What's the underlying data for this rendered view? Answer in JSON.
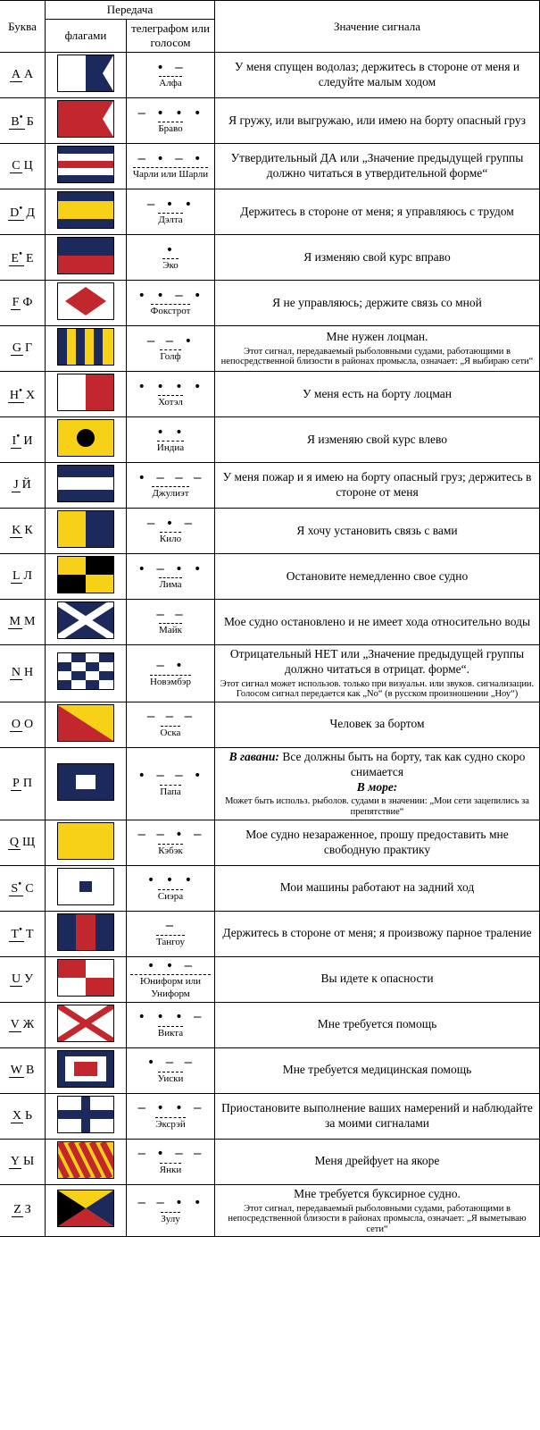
{
  "headers": {
    "letter": "Буква",
    "transmission": "Передача",
    "flags": "флагами",
    "telegraph": "телеграфом или голосом",
    "meaning": "Значение сигнала"
  },
  "colors": {
    "navy": "#1b2a5b",
    "red": "#c1272d",
    "yellow": "#f7d117",
    "white": "#ffffff",
    "black": "#000000"
  },
  "rows": [
    {
      "lat": "A",
      "cyr": "А",
      "star": "",
      "morse": "· —",
      "label": "Алфа",
      "meaning": "У меня спущен водолаз; держитесь в стороне от меня и следуйте малым ходом",
      "flag": "<svg viewBox='0 0 62 40'><rect width='31' height='40' fill='#ffffff'/><path d='M31 0 H62 L50 20 L62 40 H31 Z' fill='#1b2a5b'/></svg>"
    },
    {
      "lat": "B",
      "cyr": "Б",
      "star": "•",
      "morse": "— · · ·",
      "label": "Браво",
      "meaning": "Я гружу, или выгружаю, или имею на борту опасный груз",
      "flag": "<svg viewBox='0 0 62 40'><path d='M0 0 H62 L50 20 L62 40 H0 Z' fill='#c1272d'/></svg>"
    },
    {
      "lat": "C",
      "cyr": "Ц",
      "star": "",
      "morse": "— · — ·",
      "label": "Чарли или Шарли",
      "meaning": "Утвердительный ДА или „Значение предыдущей группы должно читаться в утвердительной форме“",
      "flag": "<svg viewBox='0 0 62 40'><rect width='62' height='40' fill='#1b2a5b'/><rect y='8' width='62' height='8' fill='#ffffff'/><rect y='16' width='62' height='8' fill='#c1272d'/><rect y='24' width='62' height='8' fill='#ffffff'/></svg>"
    },
    {
      "lat": "D",
      "cyr": "Д",
      "star": "•",
      "morse": "— · ·",
      "label": "Дэлта",
      "meaning": "Держитесь в стороне от меня; я управляюсь с трудом",
      "flag": "<svg viewBox='0 0 62 40'><rect width='62' height='40' fill='#f7d117'/><rect y='0' width='62' height='10' fill='#1b2a5b'/><rect y='30' width='62' height='10' fill='#1b2a5b'/></svg>"
    },
    {
      "lat": "E",
      "cyr": "Е",
      "star": "•",
      "morse": "·",
      "label": "Эко",
      "meaning": "Я изменяю свой курс вправо",
      "flag": "<svg viewBox='0 0 62 40'><rect width='62' height='20' fill='#1b2a5b'/><rect y='20' width='62' height='20' fill='#c1272d'/></svg>"
    },
    {
      "lat": "F",
      "cyr": "Ф",
      "star": "",
      "morse": "· · — ·",
      "label": "Фокстрот",
      "meaning": "Я не управляюсь; держите связь со мной",
      "flag": "<svg viewBox='0 0 62 40'><rect width='62' height='40' fill='#ffffff'/><path d='M31 4 L54 20 L31 36 L8 20 Z' fill='#c1272d'/></svg>"
    },
    {
      "lat": "G",
      "cyr": "Г",
      "star": "",
      "morse": "— — ·",
      "label": "Голф",
      "meaning": "Мне нужен лоцман.",
      "note": "Этот сигнал, передаваемый рыболовными судами, работающими в непосредственной близости в районах промысла, означает: „Я выбираю сети“",
      "flag": "<svg viewBox='0 0 62 40'><rect width='62' height='40' fill='#f7d117'/><rect x='0' width='10' height='40' fill='#1b2a5b'/><rect x='20' width='10' height='40' fill='#1b2a5b'/><rect x='40' width='10' height='40' fill='#1b2a5b'/></svg>"
    },
    {
      "lat": "H",
      "cyr": "Х",
      "star": "•",
      "morse": "· · · ·",
      "label": "Хотэл",
      "meaning": "У меня есть на борту лоцман",
      "flag": "<svg viewBox='0 0 62 40'><rect width='31' height='40' fill='#ffffff'/><rect x='31' width='31' height='40' fill='#c1272d'/></svg>"
    },
    {
      "lat": "I",
      "cyr": "И",
      "star": "•",
      "morse": "· ·",
      "label": "Индиа",
      "meaning": "Я изменяю свой курс влево",
      "flag": "<svg viewBox='0 0 62 40'><rect width='62' height='40' fill='#f7d117'/><circle cx='31' cy='20' r='10' fill='#000000'/></svg>"
    },
    {
      "lat": "J",
      "cyr": "Й",
      "star": "",
      "morse": "· — — —",
      "label": "Джулиэт",
      "meaning": "У меня пожар и я имею на борту опасный груз; держитесь в стороне от меня",
      "flag": "<svg viewBox='0 0 62 40'><rect width='62' height='40' fill='#1b2a5b'/><rect y='13' width='62' height='14' fill='#ffffff'/></svg>"
    },
    {
      "lat": "K",
      "cyr": "К",
      "star": "",
      "morse": "— · —",
      "label": "Кило",
      "meaning": "Я хочу установить связь с вами",
      "flag": "<svg viewBox='0 0 62 40'><rect width='31' height='40' fill='#f7d117'/><rect x='31' width='31' height='40' fill='#1b2a5b'/></svg>"
    },
    {
      "lat": "L",
      "cyr": "Л",
      "star": "",
      "morse": "· — · ·",
      "label": "Лима",
      "meaning": "Остановите немедленно свое судно",
      "flag": "<svg viewBox='0 0 62 40'><rect width='62' height='40' fill='#f7d117'/><rect x='31' width='31' height='20' fill='#000000'/><rect y='20' width='31' height='20' fill='#000000'/></svg>"
    },
    {
      "lat": "M",
      "cyr": "М",
      "star": "",
      "morse": "— —",
      "label": "Майк",
      "meaning": "Мое судно остановлено и не имеет хода относительно воды",
      "flag": "<svg viewBox='0 0 62 40'><rect width='62' height='40' fill='#1b2a5b'/><path d='M0 0 L62 40 M62 0 L0 40' stroke='#ffffff' stroke-width='8'/></svg>"
    },
    {
      "lat": "N",
      "cyr": "Н",
      "star": "",
      "morse": "— ·",
      "label": "Новэмбэр",
      "meaning": "Отрицательный НЕТ или „Значение предыдущей группы должно читаться в отрицат. форме“.",
      "note": "Этот сигнал может использов. только при визуальн. или звуков. сигнализации. Голосом сигнал передается как „No“ (в русском произношении „Ноу“)",
      "flag": "<svg viewBox='0 0 62 40'><rect width='62' height='40' fill='#1b2a5b'/><g fill='#ffffff'><rect x='0' y='0' width='15' height='10'/><rect x='31' y='0' width='15' height='10'/><rect x='15' y='10' width='16' height='10'/><rect x='46' y='10' width='16' height='10'/><rect x='0' y='20' width='15' height='10'/><rect x='31' y='20' width='15' height='10'/><rect x='15' y='30' width='16' height='10'/><rect x='46' y='30' width='16' height='10'/></g></svg>"
    },
    {
      "lat": "O",
      "cyr": "О",
      "star": "",
      "morse": "— — —",
      "label": "Оска",
      "meaning": "Человек за бортом",
      "flag": "<svg viewBox='0 0 62 40'><path d='M0 0 H62 V40 Z' fill='#f7d117'/><path d='M0 0 V40 H62 Z' fill='#c1272d'/></svg>"
    },
    {
      "lat": "P",
      "cyr": "П",
      "star": "",
      "morse": "· — — ·",
      "label": "Папа",
      "meaning": "<span class='bi'>В гавани:</span> Все должны быть на борту, так как судно скоро снимается<br><span class='bi'>В море:</span>",
      "note": "Может быть использ. рыболов. судами в значении: „Мои сети зацепились за препятствие“",
      "flag": "<svg viewBox='0 0 62 40'><rect width='62' height='40' fill='#1b2a5b'/><rect x='20' y='12' width='22' height='16' fill='#ffffff'/></svg>"
    },
    {
      "lat": "Q",
      "cyr": "Щ",
      "star": "",
      "morse": "— — · —",
      "label": "Кэбэк",
      "meaning": "Мое судно незараженное, прошу предоставить мне свободную практику",
      "flag": "<svg viewBox='0 0 62 40'><rect width='62' height='40' fill='#f7d117'/></svg>"
    },
    {
      "lat": "S",
      "cyr": "С",
      "star": "•",
      "morse": "· · ·",
      "label": "Сиэра",
      "meaning": "Мои машины работают на задний ход",
      "flag": "<svg viewBox='0 0 62 40'><rect width='62' height='40' fill='#ffffff'/><rect x='24' y='14' width='14' height='12' fill='#1b2a5b'/></svg>"
    },
    {
      "lat": "T",
      "cyr": "Т",
      "star": "•",
      "morse": "—",
      "label": "Тангоу",
      "meaning": "Держитесь в стороне от меня; я произвожу парное траление",
      "flag": "<svg viewBox='0 0 62 40'><rect width='62' height='40' fill='#c1272d'/><rect width='20' height='40' fill='#1b2a5b'/><rect x='42' width='20' height='40' fill='#1b2a5b'/></svg>"
    },
    {
      "lat": "U",
      "cyr": "У",
      "star": "",
      "morse": "· · —",
      "label": "Юниформ или Униформ",
      "meaning": "Вы идете к опасности",
      "flag": "<svg viewBox='0 0 62 40'><rect width='62' height='40' fill='#ffffff'/><rect width='31' height='20' fill='#c1272d'/><rect x='31' y='20' width='31' height='20' fill='#c1272d'/></svg>"
    },
    {
      "lat": "V",
      "cyr": "Ж",
      "star": "",
      "morse": "· · · —",
      "label": "Викта",
      "meaning": "Мне требуется помощь",
      "flag": "<svg viewBox='0 0 62 40'><rect width='62' height='40' fill='#ffffff'/><path d='M0 0 L62 40 M62 0 L0 40' stroke='#c1272d' stroke-width='7'/></svg>"
    },
    {
      "lat": "W",
      "cyr": "В",
      "star": "",
      "morse": "· — —",
      "label": "Уиски",
      "meaning": "Мне требуется медицинская помощь",
      "flag": "<svg viewBox='0 0 62 40'><rect width='62' height='40' fill='#1b2a5b'/><rect x='8' y='6' width='46' height='28' fill='#ffffff'/><rect x='18' y='12' width='26' height='16' fill='#c1272d'/></svg>"
    },
    {
      "lat": "X",
      "cyr": "Ь",
      "star": "",
      "morse": "— · · —",
      "label": "Эксрэй",
      "meaning": "Приостановите выполнение ваших намерений и наблюдайте за моими сигналами",
      "flag": "<svg viewBox='0 0 62 40'><rect width='62' height='40' fill='#ffffff'/><rect x='26' width='10' height='40' fill='#1b2a5b'/><rect y='15' width='62' height='10' fill='#1b2a5b'/></svg>"
    },
    {
      "lat": "Y",
      "cyr": "Ы",
      "star": "",
      "morse": "— · — —",
      "label": "Янки",
      "meaning": "Меня дрейфует на якоре",
      "flag": "<svg viewBox='0 0 62 40'><rect width='62' height='40' fill='#f7d117'/><path d='M-10 0 L10 40 M2 0 L22 40 M14 0 L34 40 M26 0 L46 40 M38 0 L58 40 M50 0 L70 40' stroke='#c1272d' stroke-width='7'/></svg>"
    },
    {
      "lat": "Z",
      "cyr": "З",
      "star": "",
      "morse": "— — · ·",
      "label": "Зулу",
      "meaning": "Мне требуется буксирное судно.",
      "note": "Этот сигнал, передаваемый рыболовными судами, работающими в непосредственной близости в районах промысла, означает: „Я выметываю сети“",
      "flag": "<svg viewBox='0 0 62 40'><path d='M0 0 H62 L31 20 Z' fill='#f7d117'/><path d='M62 0 V40 L31 20 Z' fill='#1b2a5b'/><path d='M62 40 H0 L31 20 Z' fill='#c1272d'/><path d='M0 40 V0 L31 20 Z' fill='#000000'/></svg>"
    }
  ]
}
